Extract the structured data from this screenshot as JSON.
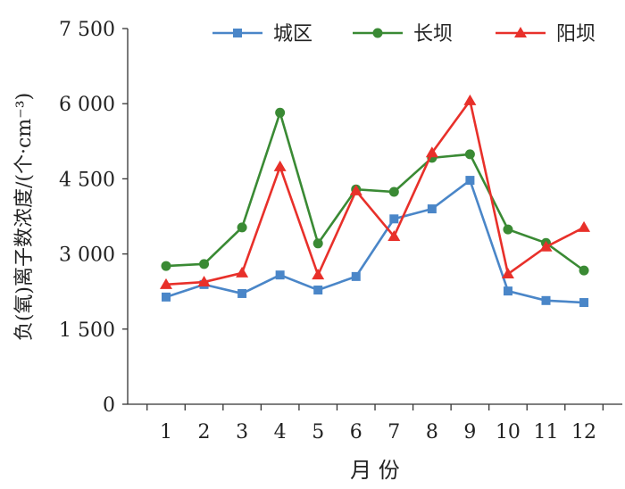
{
  "chart_data": {
    "type": "line",
    "title": "",
    "xlabel": "月 份",
    "ylabel": "负(氧)离子数浓度/(个·cm⁻³)",
    "categories": [
      "1",
      "2",
      "3",
      "4",
      "5",
      "6",
      "7",
      "8",
      "9",
      "10",
      "11",
      "12"
    ],
    "ylim": [
      0,
      7500
    ],
    "yticks": [
      0,
      1500,
      3000,
      4500,
      6000,
      7500
    ],
    "ytick_labels": [
      "0",
      "1 500",
      "3 000",
      "4 500",
      "6 000",
      "7 500"
    ],
    "grid": false,
    "legend_position": "top",
    "series": [
      {
        "name": "城区",
        "color": "#4a86c8",
        "marker": "square",
        "values": [
          2140,
          2390,
          2210,
          2580,
          2280,
          2550,
          3700,
          3900,
          4470,
          2260,
          2070,
          2030
        ]
      },
      {
        "name": "长坝",
        "color": "#3a8a34",
        "marker": "circle",
        "values": [
          2760,
          2800,
          3530,
          5820,
          3210,
          4290,
          4240,
          4920,
          4990,
          3490,
          3220,
          2670
        ]
      },
      {
        "name": "阳坝",
        "color": "#e8302a",
        "marker": "triangle",
        "values": [
          2390,
          2440,
          2620,
          4740,
          2580,
          4260,
          3350,
          5020,
          6060,
          2600,
          3140,
          3530
        ]
      }
    ]
  }
}
